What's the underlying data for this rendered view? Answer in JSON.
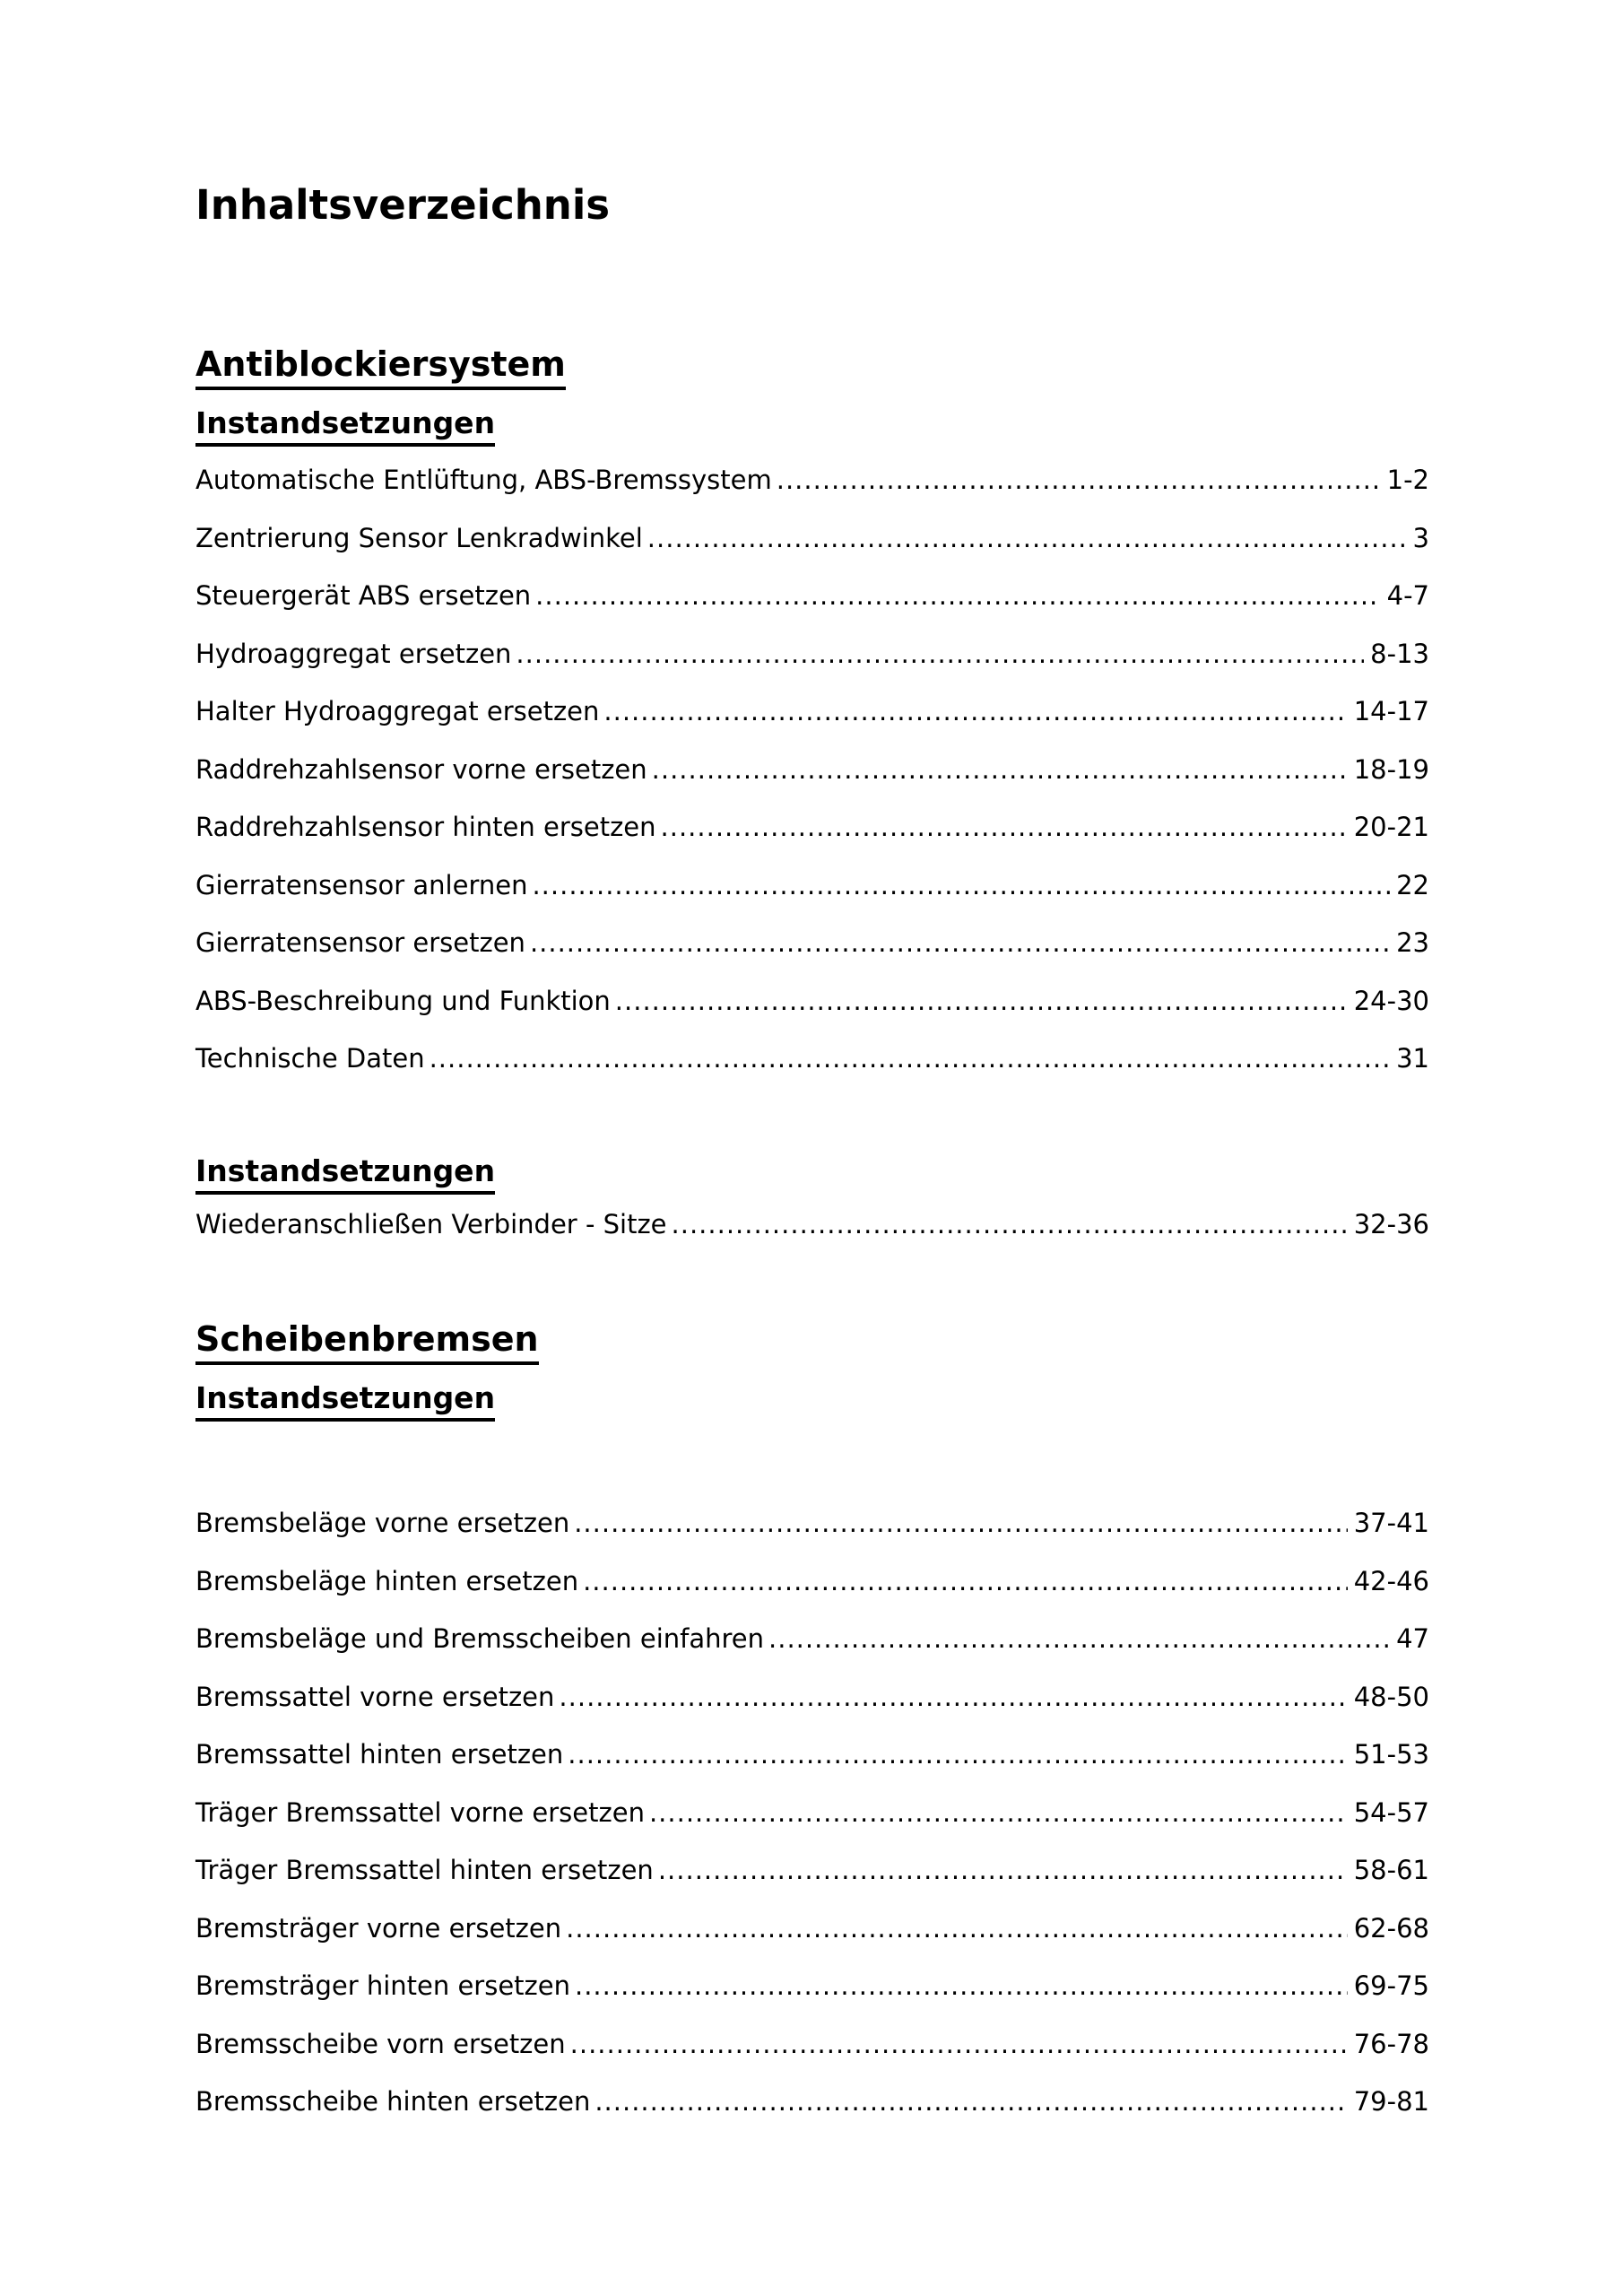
{
  "title": "Inhaltsverzeichnis",
  "sections": [
    {
      "heading": "Antiblockiersystem",
      "subheading": "Instandsetzungen",
      "entries": [
        {
          "label": "Automatische Entlüftung, ABS-Bremssystem",
          "pages": "1-2"
        },
        {
          "label": "Zentrierung Sensor Lenkradwinkel",
          "pages": "3"
        },
        {
          "label": "Steuergerät ABS ersetzen",
          "pages": "4-7"
        },
        {
          "label": "Hydroaggregat ersetzen",
          "pages": "8-13"
        },
        {
          "label": "Halter Hydroaggregat ersetzen",
          "pages": "14-17"
        },
        {
          "label": "Raddrehzahlsensor vorne ersetzen",
          "pages": "18-19"
        },
        {
          "label": "Raddrehzahlsensor hinten ersetzen",
          "pages": "20-21"
        },
        {
          "label": "Gierratensensor anlernen",
          "pages": "22"
        },
        {
          "label": "Gierratensensor ersetzen",
          "pages": "23"
        },
        {
          "label": "ABS-Beschreibung und Funktion",
          "pages": "24-30"
        },
        {
          "label": "Technische Daten",
          "pages": "31"
        }
      ]
    },
    {
      "subheading": "Instandsetzungen",
      "entries": [
        {
          "label": "Wiederanschließen Verbinder - Sitze",
          "pages": "32-36"
        }
      ]
    },
    {
      "heading": "Scheibenbremsen",
      "subheading": "Instandsetzungen",
      "entries": [
        {
          "label": "Bremsbeläge vorne ersetzen",
          "pages": "37-41"
        },
        {
          "label": "Bremsbeläge hinten ersetzen",
          "pages": "42-46"
        },
        {
          "label": "Bremsbeläge und Bremsscheiben einfahren",
          "pages": "47"
        },
        {
          "label": "Bremssattel vorne ersetzen",
          "pages": "48-50"
        },
        {
          "label": "Bremssattel hinten ersetzen",
          "pages": "51-53"
        },
        {
          "label": "Träger Bremssattel vorne ersetzen",
          "pages": "54-57"
        },
        {
          "label": "Träger Bremssattel hinten ersetzen",
          "pages": "58-61"
        },
        {
          "label": "Bremsträger vorne ersetzen",
          "pages": "62-68"
        },
        {
          "label": "Bremsträger hinten ersetzen",
          "pages": "69-75"
        },
        {
          "label": "Bremsscheibe vorn ersetzen",
          "pages": "76-78"
        },
        {
          "label": "Bremsscheibe hinten ersetzen",
          "pages": "79-81"
        }
      ]
    }
  ]
}
